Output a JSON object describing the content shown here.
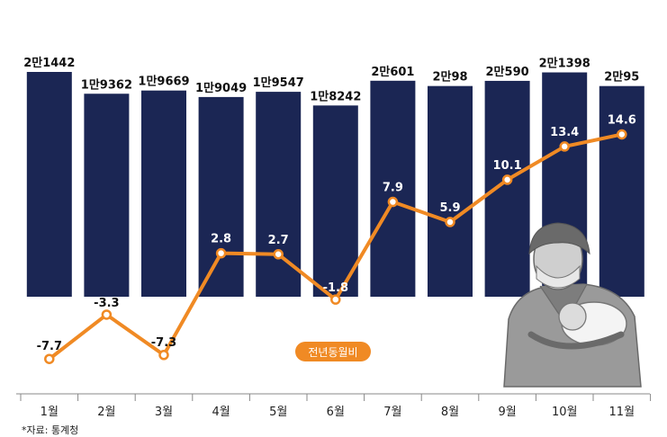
{
  "chart_data": {
    "type": "bar+line",
    "categories": [
      "1월",
      "2월",
      "3월",
      "4월",
      "5월",
      "6월",
      "7월",
      "8월",
      "9월",
      "10월",
      "11월"
    ],
    "bar_series": {
      "values": [
        21442,
        19362,
        19669,
        19049,
        19547,
        18242,
        20601,
        20098,
        20590,
        21398,
        20095
      ],
      "labels": [
        "2만1442",
        "1만9362",
        "1만9669",
        "1만9049",
        "1만9547",
        "1만8242",
        "2만601",
        "2만98",
        "2만590",
        "2만1398",
        "2만95"
      ]
    },
    "line_series": {
      "name": "전년동월비",
      "values": [
        -7.7,
        -3.3,
        -7.3,
        2.8,
        2.7,
        -1.8,
        7.9,
        5.9,
        10.1,
        13.4,
        14.6
      ],
      "labels": [
        "-7.7",
        "-3.3",
        "-7.3",
        "2.8",
        "2.7",
        "-1.8",
        "7.9",
        "5.9",
        "10.1",
        "13.4",
        "14.6"
      ]
    },
    "legend": "전년동월비",
    "source": "*자료: 통계청",
    "colors": {
      "bar": "#1b2654",
      "line": "#f08a24",
      "axis": "#888888"
    }
  }
}
